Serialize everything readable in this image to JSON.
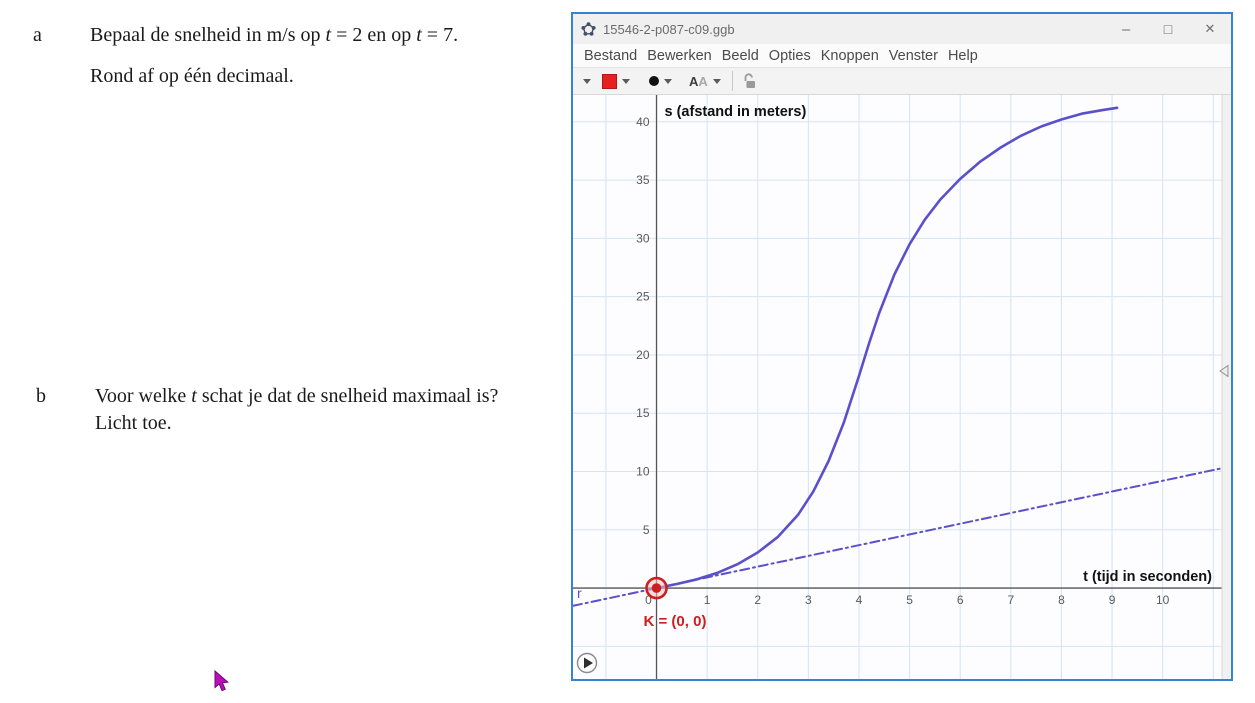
{
  "exercise": {
    "a_label": "a",
    "a_line1": [
      {
        "t": "Bepaal de snelheid in m/s op "
      },
      {
        "t": "t",
        "i": true
      },
      {
        "t": " = 2 en op "
      },
      {
        "t": "t",
        "i": true
      },
      {
        "t": " = 7."
      }
    ],
    "a_line2": "Rond af op één decimaal.",
    "b_label": "b",
    "b_line1": [
      {
        "t": "Voor welke "
      },
      {
        "t": "t",
        "i": true
      },
      {
        "t": " schat je dat de snelheid maximaal is?"
      }
    ],
    "b_line2": "Licht toe."
  },
  "window": {
    "title": "15546-2-p087-c09.ggb",
    "controls": {
      "minimize": "–",
      "maximize": "□",
      "close": "✕"
    },
    "menu": {
      "items": [
        "Bestand",
        "Bewerken",
        "Beeld",
        "Opties",
        "Knoppen",
        "Venster",
        "Help"
      ]
    },
    "stylebar": {
      "font_label_a": "A",
      "font_label_b": "A",
      "swatch_color": "#e62020",
      "point_color": "#111111"
    }
  },
  "chart_data": {
    "type": "line",
    "xlabel": "t (tijd in seconden)",
    "ylabel": "s (afstand in meters)",
    "xlim": [
      -1.65,
      11.35
    ],
    "ylim": [
      -7.8,
      42.3
    ],
    "x_ticks": [
      0,
      1,
      2,
      3,
      4,
      5,
      6,
      7,
      8,
      9,
      10
    ],
    "y_ticks": [
      5,
      10,
      15,
      20,
      25,
      30,
      35,
      40
    ],
    "grid": {
      "on": true,
      "x_step": 1,
      "y_step": 5
    },
    "legend": "none",
    "colors": {
      "grid": "#d5e4f4",
      "axis": "#555555",
      "curve": "#5a50cb",
      "point": "#cc1f1f",
      "point_halo": "#f2c4c4",
      "tick": "#5a5a5a"
    },
    "series": [
      {
        "name": "afstand-curve",
        "color": "#5a50cb",
        "width": 2.6,
        "dash": "",
        "points": [
          [
            0,
            0
          ],
          [
            0.4,
            0.35
          ],
          [
            0.8,
            0.75
          ],
          [
            1.2,
            1.3
          ],
          [
            1.6,
            2.05
          ],
          [
            2,
            3.05
          ],
          [
            2.4,
            4.4
          ],
          [
            2.8,
            6.3
          ],
          [
            3.1,
            8.3
          ],
          [
            3.4,
            10.9
          ],
          [
            3.7,
            14.2
          ],
          [
            4,
            18.2
          ],
          [
            4.2,
            21
          ],
          [
            4.4,
            23.6
          ],
          [
            4.7,
            26.9
          ],
          [
            5,
            29.5
          ],
          [
            5.3,
            31.6
          ],
          [
            5.6,
            33.3
          ],
          [
            6,
            35.1
          ],
          [
            6.4,
            36.6
          ],
          [
            6.8,
            37.8
          ],
          [
            7.2,
            38.8
          ],
          [
            7.6,
            39.6
          ],
          [
            8,
            40.2
          ],
          [
            8.4,
            40.7
          ],
          [
            8.8,
            41.0
          ],
          [
            9.1,
            41.2
          ]
        ]
      },
      {
        "name": "lijn-r",
        "label": "r",
        "color": "#5a50cb",
        "width": 2,
        "dash": "9 4 2 4",
        "points": [
          [
            -1.65,
            -1.52
          ],
          [
            11.35,
            10.45
          ]
        ]
      }
    ],
    "point": {
      "name": "K",
      "x": 0,
      "y": 0,
      "label": "K = (0, 0)"
    }
  }
}
